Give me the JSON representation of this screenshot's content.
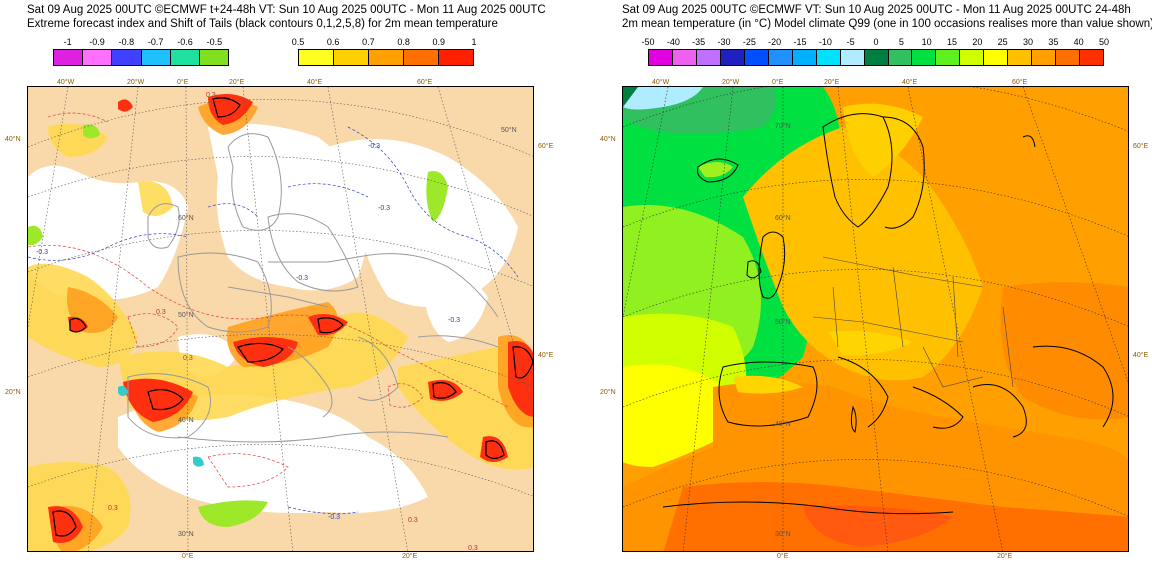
{
  "left": {
    "line1": "Sat 09 Aug 2025 00UTC ©ECMWF t+24-48h  VT: Sun 10 Aug 2025 00UTC - Mon 11 Aug 2025 00UTC",
    "line2": "Extreme forecast index and Shift of Tails (black contours 0,1,2,5,8) for 2m mean temperature",
    "neg_ticks": [
      "-1",
      "-0.9",
      "-0.8",
      "-0.7",
      "-0.6",
      "-0.5"
    ],
    "neg_colors": [
      "#e020e0",
      "#ff70ff",
      "#4040ff",
      "#20c0ff",
      "#20e0a0",
      "#80e020"
    ],
    "pos_ticks": [
      "0.5",
      "0.6",
      "0.7",
      "0.8",
      "0.9",
      "1"
    ],
    "pos_colors": [
      "#ffff20",
      "#ffd000",
      "#ffa000",
      "#ff7000",
      "#ff2000"
    ],
    "top_lon": [
      "40°W",
      "20°W",
      "0°E",
      "20°E",
      "40°E",
      "60°E"
    ],
    "bottom_lon": [
      "0°E",
      "20°E"
    ],
    "left_lat": [
      "40°N",
      "20°N"
    ],
    "right_lat": [
      "60°E",
      "40°E"
    ],
    "inner_lat": [
      "50°N",
      "60°N",
      "50°N",
      "40°N",
      "30°N"
    ],
    "contour_labels": [
      "0.3",
      "-0.3",
      "-0.3",
      "-0.3",
      "0.3",
      "0.3",
      "-0.3",
      "-0.3",
      "0.3",
      "0.3",
      "0.3",
      "-0.3"
    ]
  },
  "right": {
    "line1": "Sat 09 Aug 2025 00UTC ©ECMWF VT: Sun 10 Aug 2025 00UTC - Mon 11 Aug 2025 00UTC  24-48h",
    "line2": "2m mean temperature (in °C)  Model climate Q99 (one in 100 occasions realises more than value shown)",
    "ticks": [
      "-50",
      "-40",
      "-35",
      "-30",
      "-25",
      "-20",
      "-15",
      "-10",
      "-5",
      "0",
      "5",
      "10",
      "15",
      "20",
      "25",
      "30",
      "35",
      "40",
      "50"
    ],
    "colors": [
      "#e000e0",
      "#f060f0",
      "#c070ff",
      "#2020c0",
      "#0050ff",
      "#2090ff",
      "#00b0ff",
      "#00e0ff",
      "#b0ecff",
      "#008040",
      "#30c060",
      "#00e040",
      "#60f020",
      "#d0ff00",
      "#ffff00",
      "#ffc000",
      "#ffa000",
      "#ff7000",
      "#ff3000"
    ],
    "top_lon": [
      "40°W",
      "20°W",
      "0°E",
      "20°E",
      "40°E",
      "60°E"
    ],
    "bottom_lon": [
      "0°E",
      "20°E"
    ],
    "left_lat": [
      "40°N",
      "20°N"
    ],
    "right_lat": [
      "60°E",
      "40°E"
    ],
    "inner_lat": [
      "70°N",
      "60°N",
      "50°N",
      "40°N",
      "30°N"
    ]
  }
}
